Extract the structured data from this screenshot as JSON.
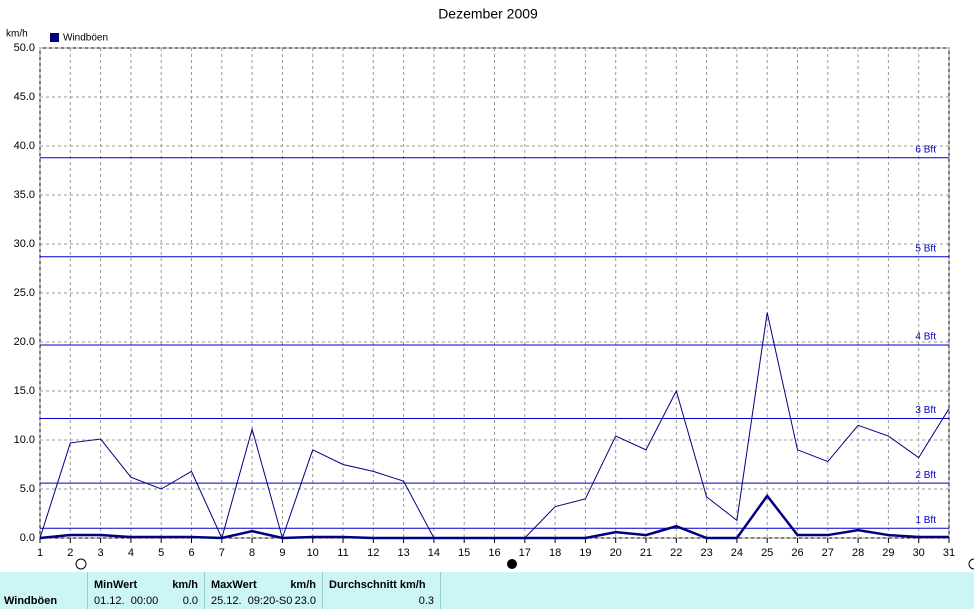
{
  "chart_data": {
    "type": "line",
    "title": "Dezember 2009",
    "y_label": "km/h",
    "x": [
      1,
      2,
      3,
      4,
      5,
      6,
      7,
      8,
      9,
      10,
      11,
      12,
      13,
      14,
      15,
      16,
      17,
      18,
      19,
      20,
      21,
      22,
      23,
      24,
      25,
      26,
      27,
      28,
      29,
      30,
      31
    ],
    "xlim": [
      1,
      31
    ],
    "series": [
      {
        "name": "Windböen",
        "color": "#000080",
        "width": 1,
        "values": [
          0,
          9.7,
          10.1,
          6.2,
          5.0,
          6.8,
          0,
          11.1,
          0,
          9.0,
          7.5,
          6.8,
          5.8,
          0,
          0,
          0,
          0,
          3.2,
          4.0,
          10.4,
          9.0,
          15.0,
          4.2,
          1.8,
          23.0,
          9.0,
          7.8,
          11.5,
          10.4,
          8.2,
          13.2
        ]
      },
      {
        "color": "#000080",
        "width": 2.5,
        "values": [
          0,
          0.3,
          0.3,
          0.1,
          0.1,
          0.1,
          0,
          0.7,
          0,
          0.1,
          0.1,
          0,
          0,
          0,
          0,
          0,
          0,
          0,
          0,
          0.6,
          0.3,
          1.2,
          0,
          0,
          4.3,
          0.3,
          0.3,
          0.8,
          0.3,
          0.1,
          0.1
        ]
      }
    ],
    "ylim": [
      0,
      50
    ],
    "yticks": [
      {
        "value": 0,
        "label": "0.0"
      },
      {
        "value": 5,
        "label": "5.0"
      },
      {
        "value": 10,
        "label": "10.0"
      },
      {
        "value": 15,
        "label": "15.0"
      },
      {
        "value": 20,
        "label": "20.0"
      },
      {
        "value": 25,
        "label": "25.0"
      },
      {
        "value": 30,
        "label": "30.0"
      },
      {
        "value": 35,
        "label": "35.0"
      },
      {
        "value": 40,
        "label": "40.0"
      },
      {
        "value": 45,
        "label": "45.0"
      },
      {
        "value": 50,
        "label": "50.0"
      }
    ],
    "grid": true,
    "reference_lines": [
      {
        "value": 1.0,
        "label": "1 Bft"
      },
      {
        "value": 5.6,
        "label": "2 Bft"
      },
      {
        "value": 12.2,
        "label": "3 Bft"
      },
      {
        "value": 19.7,
        "label": "4 Bft"
      },
      {
        "value": 28.7,
        "label": "5 Bft"
      },
      {
        "value": 38.8,
        "label": "6 Bft"
      }
    ],
    "reference_color": "#0000c8"
  },
  "stats": {
    "row_label": "Windböen",
    "min": {
      "header": "MinWert",
      "unit": "km/h",
      "date": "01.12.  00:00",
      "value": "0.0"
    },
    "max": {
      "header": "MaxWert",
      "unit": "km/h",
      "date": "25.12.  09:20-S0",
      "value": "23.0"
    },
    "avg": {
      "header": "Durchschnitt km/h",
      "value": "0.3"
    }
  }
}
